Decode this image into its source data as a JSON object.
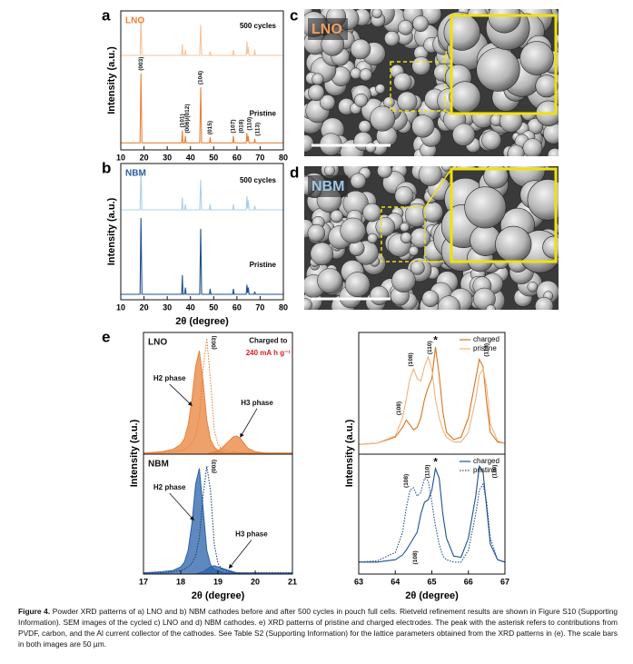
{
  "chart_data": [
    {
      "type": "line",
      "panel_label": "a",
      "sample": "LNO",
      "sample_color": "#e8823a",
      "ylabel": "Intensity (a.u.)",
      "xlim": [
        10,
        80
      ],
      "xticks": [
        10,
        20,
        30,
        40,
        50,
        60,
        70,
        80
      ],
      "ylim": [
        0,
        100
      ],
      "x": [
        10,
        18.3,
        18.7,
        19.1,
        36.2,
        36.5,
        36.8,
        37.5,
        37.8,
        38.1,
        44,
        44.4,
        44.8,
        48.2,
        48.5,
        48.8,
        58.2,
        58.5,
        58.8,
        64,
        64.3,
        64.6,
        64.9,
        65.2,
        67.4,
        67.7,
        68,
        80
      ],
      "series": [
        {
          "name": "500 cycles",
          "color": "#f6c39a",
          "values": [
            68,
            68,
            95,
            68,
            68,
            76,
            68,
            68,
            72,
            68,
            68,
            90,
            68,
            68,
            71,
            68,
            68,
            72,
            68,
            68,
            78,
            69,
            74,
            68,
            68,
            72,
            68,
            68
          ]
        },
        {
          "name": "Pristine",
          "color": "#e8823a",
          "values": [
            5,
            5,
            55,
            5,
            5,
            14,
            5,
            5,
            10,
            5,
            5,
            45,
            5,
            5,
            9,
            5,
            5,
            10,
            5,
            5,
            12,
            6,
            10,
            5,
            5,
            8,
            5,
            5
          ]
        }
      ],
      "annotations": [
        {
          "x": 18.7,
          "y": 57,
          "text": "(003)",
          "vertical": true
        },
        {
          "x": 36.5,
          "y": 16,
          "text": "(101)",
          "vertical": true
        },
        {
          "x": 38.6,
          "y": 12,
          "text": "(006)/(012)",
          "vertical": true
        },
        {
          "x": 44.4,
          "y": 47,
          "text": "(104)",
          "vertical": true
        },
        {
          "x": 48.5,
          "y": 11,
          "text": "(015)",
          "vertical": true
        },
        {
          "x": 58.5,
          "y": 12,
          "text": "(107)",
          "vertical": true
        },
        {
          "x": 62,
          "y": 12,
          "text": "(018)",
          "vertical": true
        },
        {
          "x": 65.5,
          "y": 14,
          "text": "(110)",
          "vertical": true
        },
        {
          "x": 69,
          "y": 10,
          "text": "(113)",
          "vertical": true
        }
      ]
    },
    {
      "type": "line",
      "panel_label": "b",
      "sample": "NBM",
      "sample_color": "#2a5d9f",
      "ylabel": "Intensity (a.u.)",
      "xlabel": "2θ (degree)",
      "xlim": [
        10,
        80
      ],
      "xticks": [
        10,
        20,
        30,
        40,
        50,
        60,
        70,
        80
      ],
      "ylim": [
        0,
        100
      ],
      "x": [
        10,
        18.3,
        18.7,
        19.1,
        36.2,
        36.5,
        36.8,
        37.5,
        37.8,
        38.1,
        44,
        44.4,
        44.8,
        48.2,
        48.5,
        48.8,
        58.2,
        58.5,
        58.8,
        64,
        64.3,
        64.6,
        64.9,
        65.2,
        67.4,
        67.7,
        68,
        80
      ],
      "series": [
        {
          "name": "500 cycles",
          "color": "#a8d0ea",
          "values": [
            66,
            66,
            93,
            66,
            66,
            75,
            66,
            66,
            70,
            66,
            66,
            88,
            66,
            66,
            70,
            66,
            66,
            70,
            66,
            66,
            76,
            67,
            73,
            66,
            66,
            69,
            66,
            66
          ]
        },
        {
          "name": "Pristine",
          "color": "#1f4f8f",
          "values": [
            4,
            4,
            60,
            4,
            4,
            18,
            4,
            4,
            9,
            4,
            4,
            52,
            4,
            4,
            8,
            4,
            4,
            8,
            4,
            4,
            11,
            5,
            9,
            4,
            4,
            6,
            4,
            4
          ]
        }
      ]
    },
    {
      "type": "area",
      "panel_label": "e",
      "sample": "LNO",
      "sample_color": "#111111",
      "ylabel": "Intensity (a.u.)",
      "xlim": [
        17,
        21
      ],
      "ylim": [
        0,
        100
      ],
      "x": [
        17,
        17.5,
        17.8,
        18,
        18.1,
        18.2,
        18.3,
        18.4,
        18.5,
        18.6,
        18.7,
        18.8,
        18.9,
        19,
        19.1,
        19.2,
        19.3,
        19.4,
        19.5,
        19.6,
        19.7,
        19.8,
        20,
        20.5,
        21
      ],
      "series": [
        {
          "color": "#e8823a",
          "fill": true,
          "values": [
            1,
            2,
            4,
            8,
            13,
            24,
            45,
            72,
            85,
            60,
            28,
            12,
            6,
            3,
            2,
            1,
            1,
            1,
            1,
            1,
            1,
            1,
            1,
            1,
            1
          ]
        },
        {
          "color": "#e8823a",
          "fill": true,
          "values": [
            0,
            0,
            0,
            0,
            0,
            0,
            0,
            0,
            0,
            0,
            0,
            1,
            2,
            3,
            5,
            8,
            11,
            14,
            15,
            13,
            9,
            5,
            2,
            0,
            0
          ]
        },
        {
          "color": "#e8823a",
          "dash": true,
          "values": [
            1,
            1,
            2,
            3,
            4,
            6,
            9,
            15,
            30,
            70,
            95,
            60,
            20,
            8,
            4,
            3,
            2,
            2,
            2,
            1,
            1,
            1,
            1,
            1,
            1
          ]
        }
      ],
      "annotations": [
        {
          "x": 20.35,
          "y": 93,
          "text": "Charged to"
        },
        {
          "x": 20.35,
          "y": 83,
          "text": "240 mA h g⁻¹",
          "color": "#d62020"
        },
        {
          "x": 18.9,
          "y": 86,
          "text": "(003)",
          "vertical": true
        },
        {
          "x": 17.7,
          "y": 62,
          "text": "H2 phase",
          "arrow_to": [
            18.3,
            40
          ]
        },
        {
          "x": 20.05,
          "y": 42,
          "text": "H3 phase",
          "arrow_to": [
            19.6,
            14
          ]
        }
      ]
    },
    {
      "type": "area",
      "sample": "NBM",
      "sample_color": "#111111",
      "xlabel": "2θ (degree)",
      "xlim": [
        17,
        21
      ],
      "xticks": [
        17,
        18,
        19,
        20,
        21
      ],
      "ylim": [
        0,
        100
      ],
      "x": [
        17,
        17.5,
        17.8,
        18,
        18.1,
        18.2,
        18.3,
        18.4,
        18.5,
        18.6,
        18.7,
        18.8,
        18.9,
        19,
        19.1,
        19.2,
        19.3,
        19.4,
        19.5,
        19.6,
        19.7,
        19.8,
        20,
        20.5,
        21
      ],
      "series": [
        {
          "color": "#2a62a8",
          "fill": true,
          "values": [
            1,
            2,
            3,
            6,
            10,
            20,
            42,
            75,
            88,
            55,
            20,
            8,
            4,
            3,
            2,
            1,
            1,
            1,
            1,
            1,
            1,
            1,
            1,
            1,
            1
          ]
        },
        {
          "color": "#2a62a8",
          "fill": true,
          "values": [
            0,
            0,
            0,
            0,
            0,
            0,
            0,
            0,
            1,
            2,
            4,
            6,
            7,
            6,
            5,
            4,
            3,
            2,
            1,
            1,
            0,
            0,
            0,
            0,
            0
          ]
        },
        {
          "color": "#1f3f7a",
          "dash": true,
          "values": [
            1,
            1,
            2,
            3,
            4,
            6,
            9,
            15,
            30,
            65,
            90,
            70,
            25,
            9,
            4,
            3,
            2,
            2,
            1,
            1,
            1,
            1,
            1,
            1,
            1
          ]
        }
      ],
      "annotations": [
        {
          "x": 18.9,
          "y": 84,
          "text": "(003)",
          "vertical": true
        },
        {
          "x": 17.7,
          "y": 72,
          "text": "H2 phase",
          "arrow_to": [
            18.35,
            45
          ]
        },
        {
          "x": 19.9,
          "y": 33,
          "text": "H3 phase",
          "arrow_to": [
            19.3,
            5
          ]
        }
      ]
    },
    {
      "type": "line",
      "ylabel": "Intensity (a.u.)",
      "legend": "upper right",
      "xlim": [
        63,
        67
      ],
      "ylim": [
        0,
        100
      ],
      "x": [
        63,
        63.5,
        64,
        64.2,
        64.3,
        64.4,
        64.5,
        64.6,
        64.7,
        64.8,
        64.9,
        65,
        65.1,
        65.2,
        65.3,
        65.4,
        65.6,
        65.8,
        66,
        66.2,
        66.3,
        66.4,
        66.5,
        66.6,
        66.8,
        67
      ],
      "series": [
        {
          "name": "charged",
          "color": "#d9731f",
          "values": [
            8,
            9,
            14,
            22,
            28,
            24,
            20,
            22,
            30,
            45,
            55,
            62,
            88,
            65,
            35,
            18,
            12,
            14,
            30,
            62,
            78,
            72,
            42,
            18,
            10,
            9
          ]
        },
        {
          "name": "pristine",
          "color": "#f2b27a",
          "values": [
            8,
            9,
            15,
            30,
            45,
            62,
            70,
            62,
            60,
            72,
            80,
            70,
            45,
            30,
            20,
            14,
            10,
            10,
            18,
            45,
            65,
            70,
            55,
            25,
            11,
            9
          ]
        }
      ],
      "annotations": [
        {
          "x": 64.1,
          "y": 32,
          "text": "(108)",
          "vertical": true
        },
        {
          "x": 64.42,
          "y": 72,
          "text": "(108)",
          "vertical": true
        },
        {
          "x": 64.95,
          "y": 82,
          "text": "(110)",
          "vertical": true
        },
        {
          "x": 65.1,
          "y": 93,
          "text": "*"
        },
        {
          "x": 66.5,
          "y": 80,
          "text": "(110)",
          "vertical": true
        }
      ]
    },
    {
      "type": "line",
      "xlabel": "2θ (degree)",
      "legend": "upper right",
      "xlim": [
        63,
        67
      ],
      "xticks": [
        63,
        64,
        65,
        66,
        67
      ],
      "ylim": [
        0,
        100
      ],
      "x": [
        63,
        63.5,
        64,
        64.2,
        64.3,
        64.4,
        64.5,
        64.6,
        64.7,
        64.8,
        64.9,
        65,
        65.1,
        65.2,
        65.3,
        65.4,
        65.6,
        65.8,
        66,
        66.2,
        66.3,
        66.4,
        66.5,
        66.6,
        66.8,
        67
      ],
      "series": [
        {
          "name": "charged",
          "color": "#1f4f8f",
          "values": [
            10,
            10,
            12,
            16,
            20,
            25,
            30,
            35,
            50,
            60,
            62,
            70,
            88,
            80,
            50,
            30,
            15,
            14,
            30,
            65,
            90,
            85,
            55,
            25,
            12,
            10
          ]
        },
        {
          "name": "pristine",
          "color": "#1f4f8f",
          "dash": true,
          "values": [
            10,
            11,
            18,
            35,
            55,
            70,
            72,
            65,
            68,
            80,
            78,
            60,
            40,
            25,
            15,
            12,
            10,
            10,
            20,
            50,
            70,
            75,
            60,
            30,
            12,
            10
          ]
        }
      ],
      "annotations": [
        {
          "x": 64.3,
          "y": 72,
          "text": "(108)",
          "vertical": true
        },
        {
          "x": 64.55,
          "y": 8,
          "text": "(108)",
          "vertical": true
        },
        {
          "x": 64.88,
          "y": 80,
          "text": "(110)",
          "vertical": true
        },
        {
          "x": 65.1,
          "y": 93,
          "text": "*"
        },
        {
          "x": 66.72,
          "y": 80,
          "text": "(110)",
          "vertical": true
        }
      ]
    }
  ],
  "sem_images": [
    {
      "panel_label": "c",
      "sample": "LNO",
      "sample_color": "#f0a060"
    },
    {
      "panel_label": "d",
      "sample": "NBM",
      "sample_color": "#9cc8e8"
    }
  ],
  "caption": {
    "label": "Figure 4.",
    "text": "Powder XRD patterns of a) LNO and b) NBM cathodes before and after 500 cycles in pouch full cells. Rietveld refinement results are shown in Figure S10 (Supporting Information). SEM images of the cycled c) LNO and d) NBM cathodes. e) XRD patterns of pristine and charged electrodes. The peak with the asterisk refers to contributions from PVDF, carbon, and the Al current collector of the cathodes. See Table S2 (Supporting Information) for the lattice parameters obtained from the XRD patterns in (e). The scale bars in both images are 50 µm."
  }
}
